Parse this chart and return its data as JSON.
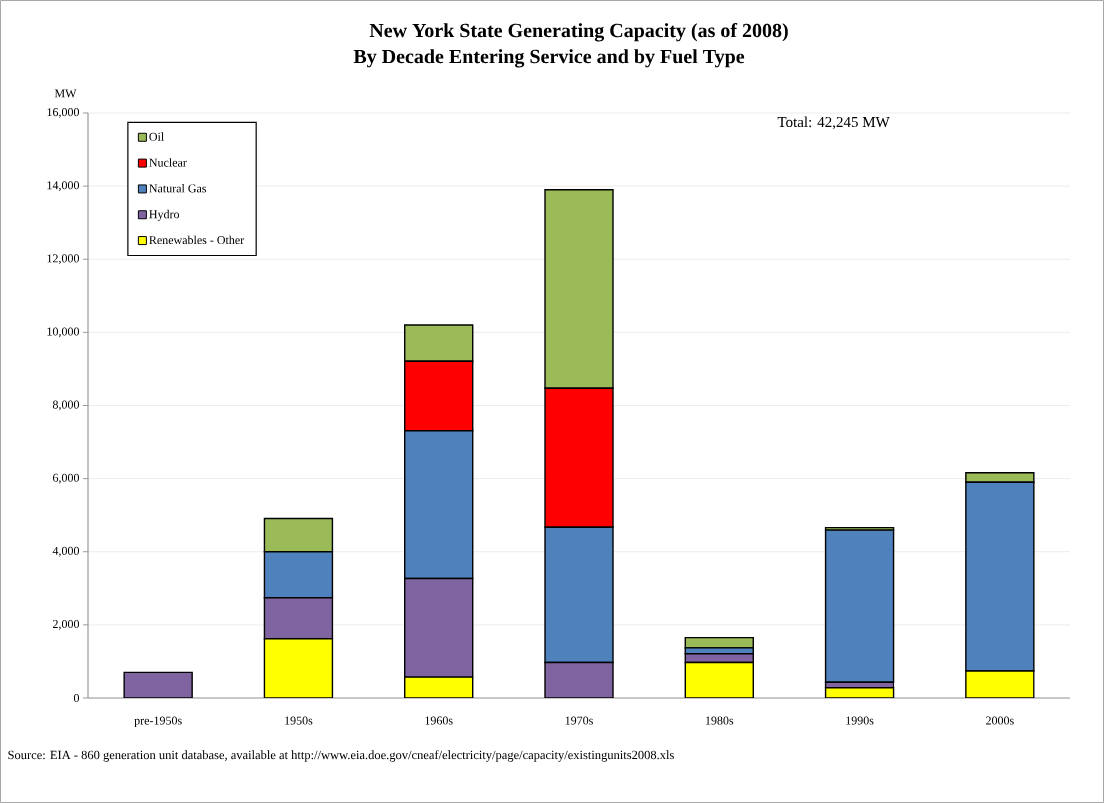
{
  "chart_data": {
    "type": "bar",
    "stacked": true,
    "title": "New York State Generating Capacity (as of 2008)",
    "subtitle": "By Decade Entering Service and by Fuel Type",
    "ylabel": "MW",
    "categories": [
      "pre-1950s",
      "1950s",
      "1960s",
      "1970s",
      "1980s",
      "1990s",
      "2000s"
    ],
    "series": [
      {
        "name": "Renewables - Other",
        "color": "#ffff00",
        "values": [
          null,
          1620,
          570,
          0,
          970,
          280,
          740
        ]
      },
      {
        "name": "Hydro",
        "color": "#8064a2",
        "values": [
          700,
          1120,
          2700,
          970,
          240,
          150,
          0
        ]
      },
      {
        "name": "Natural Gas",
        "color": "#4f81bd",
        "values": [
          0,
          1260,
          4040,
          3700,
          160,
          4160,
          5160
        ]
      },
      {
        "name": "Nuclear",
        "color": "#ff0000",
        "values": [
          0,
          0,
          1900,
          3800,
          0,
          0,
          0
        ]
      },
      {
        "name": "Oil",
        "color": "#9bbb59",
        "values": [
          null,
          910,
          990,
          5430,
          280,
          70,
          260
        ]
      }
    ],
    "ylim": [
      0,
      16000
    ],
    "yticks": [
      {
        "value": 0,
        "label": "0"
      },
      {
        "value": 2000,
        "label": "2,000"
      },
      {
        "value": 4000,
        "label": "4,000"
      },
      {
        "value": 6000,
        "label": "6,000"
      },
      {
        "value": 8000,
        "label": "8,000"
      },
      {
        "value": 10000,
        "label": "10,000"
      },
      {
        "value": 12000,
        "label": "12,000"
      },
      {
        "value": 14000,
        "label": "14,000"
      },
      {
        "value": 16000,
        "label": "16,000"
      }
    ],
    "grid": "y",
    "legend": "top left",
    "annotations": [
      "Total: 42,245 MW",
      "Source: EIA - 860 generation unit database, available at http://www.eia.doe.gov/cneaf/electricity/page/capacity/existingunits2008.xls"
    ]
  }
}
